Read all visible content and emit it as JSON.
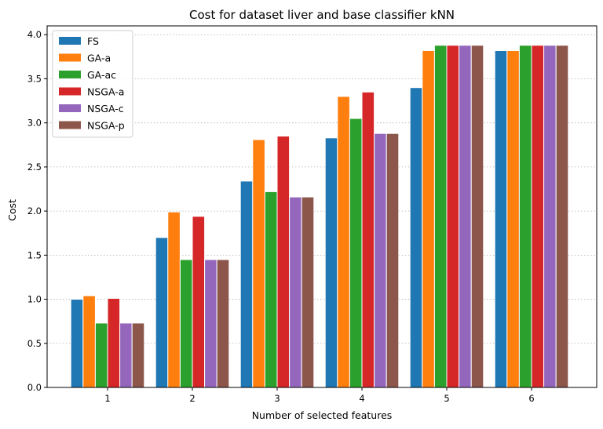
{
  "chart_data": {
    "type": "bar",
    "title": "Cost for dataset liver and base classifier kNN",
    "xlabel": "Number of selected features",
    "ylabel": "Cost",
    "categories": [
      "1",
      "2",
      "3",
      "4",
      "5",
      "6"
    ],
    "ylim": [
      0,
      4.1
    ],
    "yticks": [
      "0.0",
      "0.5",
      "1.0",
      "1.5",
      "2.0",
      "2.5",
      "3.0",
      "3.5",
      "4.0"
    ],
    "grid": "horizontal dotted",
    "legend_position": "top-left",
    "series": [
      {
        "name": "FS",
        "color": "#1f77b4",
        "values": [
          1.0,
          1.7,
          2.34,
          2.83,
          3.4,
          3.82
        ]
      },
      {
        "name": "GA-a",
        "color": "#ff7f0e",
        "values": [
          1.04,
          1.99,
          2.81,
          3.3,
          3.82,
          3.82
        ]
      },
      {
        "name": "GA-ac",
        "color": "#2ca02c",
        "values": [
          0.73,
          1.45,
          2.22,
          3.05,
          3.88,
          3.88
        ]
      },
      {
        "name": "NSGA-a",
        "color": "#d62728",
        "values": [
          1.01,
          1.94,
          2.85,
          3.35,
          3.88,
          3.88
        ]
      },
      {
        "name": "NSGA-c",
        "color": "#9467bd",
        "values": [
          0.73,
          1.45,
          2.16,
          2.88,
          3.88,
          3.88
        ]
      },
      {
        "name": "NSGA-p",
        "color": "#8c564b",
        "values": [
          0.73,
          1.45,
          2.16,
          2.88,
          3.88,
          3.88
        ]
      }
    ]
  }
}
